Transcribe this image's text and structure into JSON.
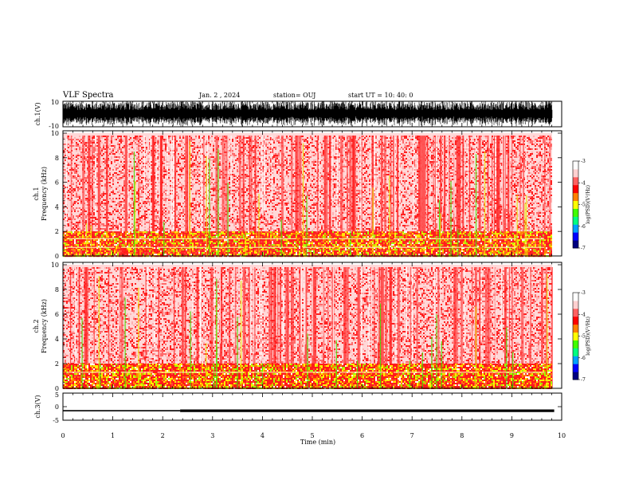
{
  "header": {
    "title": "VLF Spectra",
    "date": "Jan. 2 , 2024",
    "station": "station= OUJ",
    "start_ut": "start UT =  10: 40: 0"
  },
  "chart_data": [
    {
      "id": "ch1-waveform",
      "type": "line",
      "ylabel": "ch.1(V)",
      "ylim": [
        -10,
        10
      ],
      "y_ticks": [
        "10",
        "-10"
      ],
      "xlim": [
        0,
        10
      ],
      "x_tick_labels": [],
      "note_color": "#000000"
    },
    {
      "id": "ch1-spectrogram",
      "type": "heatmap",
      "ylabel": "ch.1\nFrequency (kHz)",
      "ylim": [
        0,
        10
      ],
      "y_ticks": [
        "0",
        "2",
        "4",
        "6",
        "8",
        "10"
      ],
      "xlim": [
        0,
        9.85
      ],
      "colorbar": {
        "label": "log(PSD)(V²/Hz)",
        "range": [
          -7,
          -3
        ],
        "ticks": [
          "-3",
          "-4",
          "-5",
          "-6",
          "-7"
        ],
        "colors": [
          "#000080",
          "#0000ff",
          "#00a0ff",
          "#00ff80",
          "#40ff00",
          "#ffff00",
          "#ff8000",
          "#ff0000",
          "#ff6060",
          "#ffd0d0",
          "#ffffff"
        ]
      },
      "band_kHz": [
        0,
        2
      ],
      "signal_lines_kHz": [
        1.4,
        0.7
      ]
    },
    {
      "id": "ch2-spectrogram",
      "type": "heatmap",
      "ylabel": "ch.2\nFrequency (kHz)",
      "ylim": [
        0,
        10
      ],
      "y_ticks": [
        "0",
        "2",
        "4",
        "6",
        "8",
        "10"
      ],
      "xlim": [
        0,
        9.85
      ],
      "colorbar": {
        "label": "log(PSD)(V²/Hz)",
        "range": [
          -7,
          -3
        ],
        "ticks": [
          "-3",
          "-4",
          "-5",
          "-6",
          "-7"
        ],
        "colors": [
          "#000080",
          "#0000ff",
          "#00a0ff",
          "#00ff80",
          "#40ff00",
          "#ffff00",
          "#ff8000",
          "#ff0000",
          "#ff6060",
          "#ffd0d0",
          "#ffffff"
        ]
      },
      "band_kHz": [
        0,
        2
      ],
      "signal_lines_kHz": [
        1.3
      ]
    },
    {
      "id": "ch3-trace",
      "type": "line",
      "ylabel": "ch.3(V)",
      "ylim": [
        -5,
        5
      ],
      "y_ticks": [
        "5",
        "0",
        "-5"
      ],
      "xlim": [
        0,
        10
      ],
      "x": [
        0,
        2.35,
        2.35,
        9.85
      ],
      "y": [
        -1.5,
        -1.5,
        -1.5,
        -1.5
      ],
      "thick_from_min": 2.35
    }
  ],
  "x_axis": {
    "label": "Time (min)",
    "ticks": [
      "0",
      "1",
      "2",
      "3",
      "4",
      "5",
      "6",
      "7",
      "8",
      "9",
      "10"
    ]
  }
}
